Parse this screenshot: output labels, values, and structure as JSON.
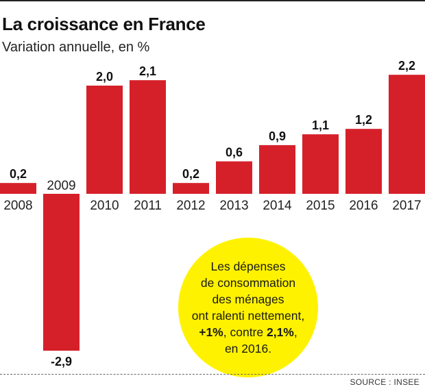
{
  "header": {
    "title": "La croissance en France",
    "subtitle": "Variation annuelle, en %"
  },
  "chart_data": {
    "type": "bar",
    "categories": [
      "2008",
      "2009",
      "2010",
      "2011",
      "2012",
      "2013",
      "2014",
      "2015",
      "2016",
      "2017"
    ],
    "values": [
      0.2,
      -2.9,
      2.0,
      2.1,
      0.2,
      0.6,
      0.9,
      1.1,
      1.2,
      2.2
    ],
    "data_labels": [
      "0,2",
      "-2,9",
      "2,0",
      "2,1",
      "0,2",
      "0,6",
      "0,9",
      "1,1",
      "1,2",
      "2,2"
    ],
    "title": "La croissance en France",
    "subtitle": "Variation annuelle, en %",
    "xlabel": "",
    "ylabel": "",
    "ylim": [
      -3,
      2.4
    ],
    "grid": false,
    "legend": "none",
    "bar_color": "#d5202a"
  },
  "callout": {
    "line1": "Les dépenses",
    "line2": "de consommation",
    "line3": "des ménages",
    "line4": "ont ralenti nettement,",
    "line5_bold1": "+1%",
    "line5_mid": ", contre ",
    "line5_bold2": "2,1%",
    "line5_end": ",",
    "line6": "en 2016.",
    "color": "#fff200"
  },
  "footer": {
    "source": "SOURCE : INSEE"
  }
}
